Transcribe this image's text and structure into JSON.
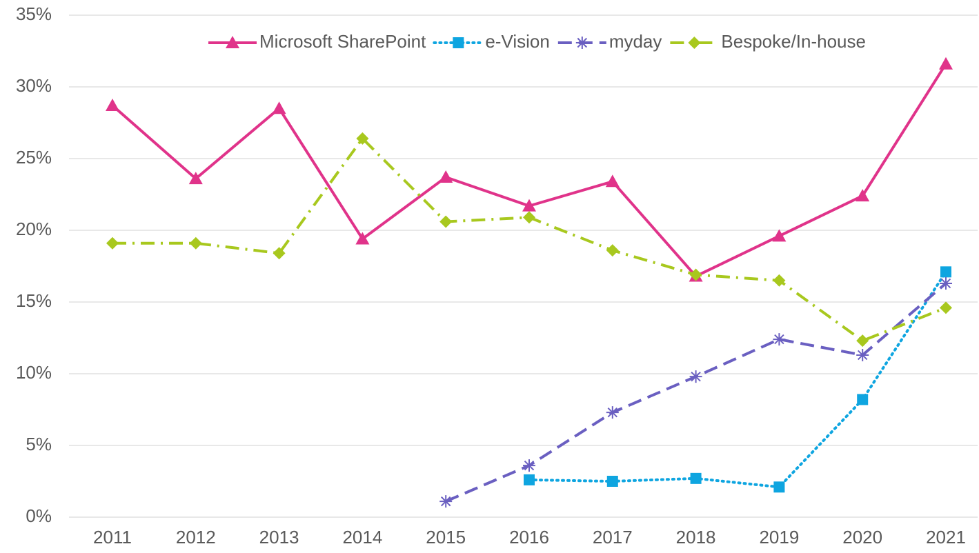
{
  "chart_data": {
    "type": "line",
    "categories": [
      "2011",
      "2012",
      "2013",
      "2014",
      "2015",
      "2016",
      "2017",
      "2018",
      "2019",
      "2020",
      "2021"
    ],
    "series": [
      {
        "name": "Microsoft SharePoint",
        "color": "#e0338a",
        "dash": "solid",
        "marker": "triangle",
        "values": [
          28.7,
          23.6,
          28.5,
          19.4,
          23.7,
          21.7,
          23.4,
          16.8,
          19.6,
          22.4,
          31.6
        ]
      },
      {
        "name": "e-Vision",
        "color": "#0ea5e0",
        "dash": "dotted",
        "marker": "square",
        "values": [
          null,
          null,
          null,
          null,
          null,
          2.6,
          2.5,
          2.7,
          2.1,
          8.2,
          17.1
        ]
      },
      {
        "name": "myday",
        "color": "#6a5fc1",
        "dash": "dashed",
        "marker": "asterisk",
        "values": [
          null,
          null,
          null,
          null,
          1.1,
          3.6,
          7.3,
          9.8,
          12.4,
          11.3,
          16.3
        ]
      },
      {
        "name": "Bespoke/In-house",
        "color": "#a8c81e",
        "dash": "dashdot",
        "marker": "diamond",
        "values": [
          19.1,
          19.1,
          18.4,
          26.4,
          20.6,
          20.9,
          18.6,
          16.9,
          16.5,
          12.3,
          14.6
        ]
      }
    ],
    "ylim": [
      0,
      35
    ],
    "yticks": [
      {
        "value": 0,
        "label": "0%"
      },
      {
        "value": 5,
        "label": "5%"
      },
      {
        "value": 10,
        "label": "10%"
      },
      {
        "value": 15,
        "label": "15%"
      },
      {
        "value": 20,
        "label": "20%"
      },
      {
        "value": 25,
        "label": "25%"
      },
      {
        "value": 30,
        "label": "30%"
      },
      {
        "value": 35,
        "label": "35%"
      }
    ],
    "grid": true,
    "legend": "top"
  }
}
